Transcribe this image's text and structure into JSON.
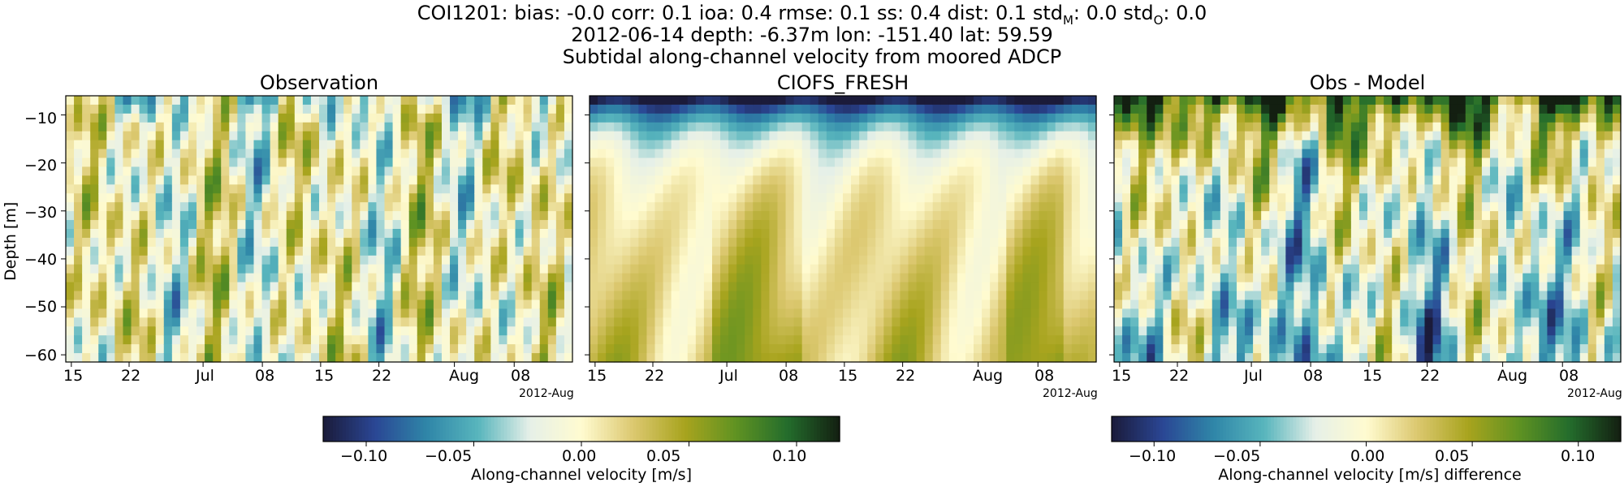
{
  "figure": {
    "title_line1_parts": {
      "prefix": "COI1201: bias: -0.0  corr: 0.1  ioa: 0.4  rmse: 0.1  ss: 0.4  dist: 0.1  std",
      "sub_m": "M",
      "mid": ": 0.0  std",
      "sub_o": "O",
      "suffix": ": 0.0"
    },
    "title_line2": "2012-06-14 depth: -6.37m lon: -151.40 lat: 59.59",
    "title_line3": "Subtidal along-channel velocity from moored ADCP"
  },
  "colors": {
    "cmap": [
      "#1b1b3a",
      "#2a4694",
      "#2f86a8",
      "#58b5bd",
      "#e6f0e8",
      "#fffbd0",
      "#dcc870",
      "#a8a41e",
      "#5f9222",
      "#236c2c",
      "#131f11"
    ]
  },
  "chart_data": [
    {
      "type": "heatmap",
      "title": "Observation",
      "ylabel": "Depth [m]",
      "x_ticks": [
        "15",
        "22",
        "Jul",
        "08",
        "15",
        "22",
        "Aug",
        "08"
      ],
      "x_offset_label": "2012-Aug",
      "y_ticks": [
        "−10",
        "−20",
        "−30",
        "−40",
        "−50",
        "−60"
      ],
      "ylim": [
        -61.5,
        -6.0
      ],
      "xlim": [
        "2012-06-14",
        "2012-08-16"
      ],
      "colorbar_range": [
        -0.12,
        0.12
      ]
    },
    {
      "type": "heatmap",
      "title": "CIOFS_FRESH",
      "x_ticks": [
        "15",
        "22",
        "Jul",
        "08",
        "15",
        "22",
        "Aug",
        "08"
      ],
      "x_offset_label": "2012-Aug",
      "ylim": [
        -61.5,
        -6.0
      ],
      "xlim": [
        "2012-06-14",
        "2012-08-16"
      ],
      "colorbar_range": [
        -0.12,
        0.12
      ]
    },
    {
      "type": "heatmap",
      "title": "Obs - Model",
      "x_ticks": [
        "15",
        "22",
        "Jul",
        "08",
        "15",
        "22",
        "Aug",
        "08"
      ],
      "x_offset_label": "2012-Aug",
      "ylim": [
        -61.5,
        -6.0
      ],
      "xlim": [
        "2012-06-14",
        "2012-08-16"
      ],
      "colorbar_range": [
        -0.12,
        0.12
      ]
    }
  ],
  "colorbars": [
    {
      "label": "Along-channel velocity [m/s]",
      "ticks": [
        "−0.10",
        "−0.05",
        "0.00",
        "0.05",
        "0.10"
      ],
      "tick_values": [
        -0.1,
        -0.05,
        0.0,
        0.05,
        0.1
      ],
      "range": [
        -0.12,
        0.12
      ]
    },
    {
      "label": "Along-channel velocity [m/s] difference",
      "ticks": [
        "−0.10",
        "−0.05",
        "0.00",
        "0.05",
        "0.10"
      ],
      "tick_values": [
        -0.1,
        -0.05,
        0.0,
        0.05,
        0.1
      ],
      "range": [
        -0.12,
        0.12
      ]
    }
  ]
}
